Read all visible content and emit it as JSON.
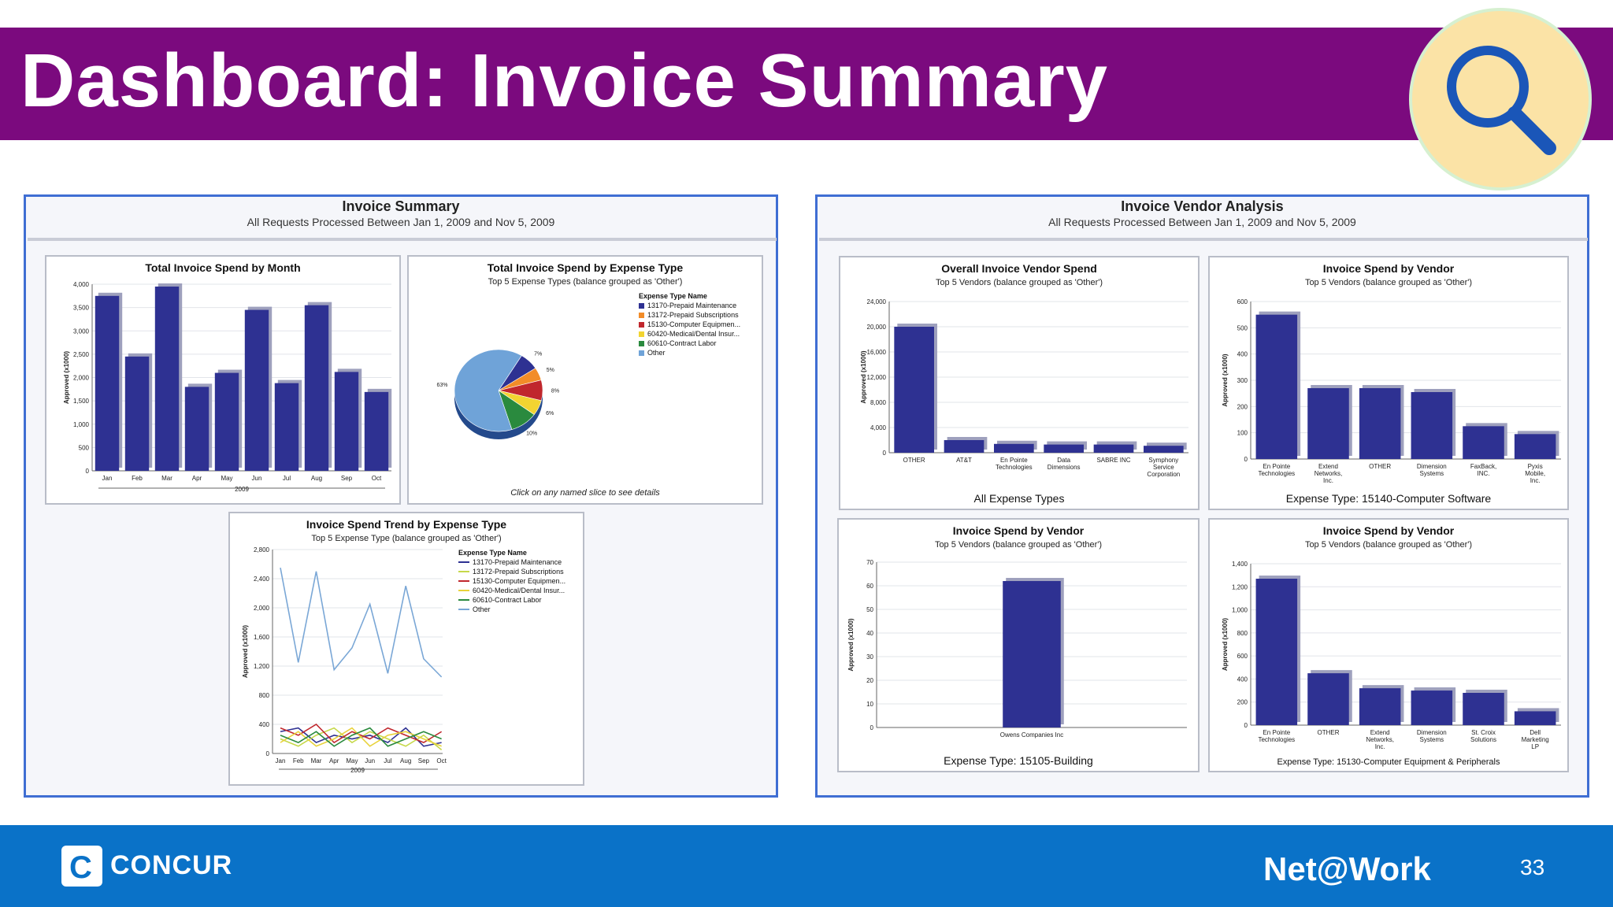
{
  "slide": {
    "title": "Dashboard: Invoice Summary",
    "page_number": "33"
  },
  "branding": {
    "left_logo": "CONCUR",
    "right_logo": "Net@Work"
  },
  "icons": {
    "search": "magnifier-icon",
    "concur": "concur-c-icon"
  },
  "colors": {
    "title_bar": "#7b0a7e",
    "footer": "#0a72c8",
    "bar": "#2e3192",
    "panel_border": "#3f6ed3"
  },
  "left_report": {
    "title": "Invoice Summary",
    "subtitle": "All Requests Processed  Between Jan 1, 2009 and Nov 5, 2009"
  },
  "right_report": {
    "title": "Invoice Vendor Analysis",
    "subtitle": "All Requests Processed  Between Jan 1, 2009 and Nov 5, 2009"
  },
  "charts": {
    "monthly": {
      "title": "Total Invoice Spend by Month",
      "ylabel": "Approved (x1000)",
      "year": "2009"
    },
    "expense_pie": {
      "title": "Total Invoice Spend by Expense Type",
      "subtitle": "Top 5 Expense Types (balance grouped as 'Other')",
      "legend_title": "Expense Type Name",
      "hint": "Click on any named slice to see details"
    },
    "trend": {
      "title": "Invoice Spend Trend by Expense Type",
      "subtitle": "Top 5 Expense Type (balance grouped as 'Other')",
      "legend_title": "Expense Type Name",
      "ylabel": "Approved (x1000)",
      "year": "2009"
    },
    "vendor_overall": {
      "title": "Overall Invoice Vendor Spend",
      "subtitle": "Top 5 Vendors (balance grouped as 'Other')",
      "ylabel": "Approved (x1000)",
      "footer": "All Expense Types"
    },
    "vendor_software": {
      "title": "Invoice Spend by Vendor",
      "subtitle": "Top 5 Vendors (balance grouped as 'Other')",
      "ylabel": "Approved (x1000)",
      "footer": "Expense Type: 15140-Computer Software"
    },
    "vendor_building": {
      "title": "Invoice Spend by Vendor",
      "subtitle": "Top 5 Vendors (balance grouped as 'Other')",
      "ylabel": "Approved (x1000)",
      "footer": "Expense Type: 15105-Building"
    },
    "vendor_equipment": {
      "title": "Invoice Spend by Vendor",
      "subtitle": "Top 5 Vendors (balance grouped as 'Other')",
      "ylabel": "Approved (x1000)",
      "footer": "Expense Type: 15130-Computer Equipment & Peripherals"
    }
  },
  "chart_data": [
    {
      "id": "monthly",
      "type": "bar",
      "categories": [
        "Jan",
        "Feb",
        "Mar",
        "Apr",
        "May",
        "Jun",
        "Jul",
        "Aug",
        "Sep",
        "Oct"
      ],
      "values": [
        3750,
        2450,
        3950,
        1800,
        2100,
        3450,
        1880,
        3550,
        2120,
        1690
      ],
      "ylim": [
        0,
        4000
      ],
      "yticks": [
        "0",
        "500",
        "1,000",
        "1,500",
        "2,000",
        "2,500",
        "3,000",
        "3,500",
        "4,000"
      ]
    },
    {
      "id": "expense_pie",
      "type": "pie",
      "series": [
        {
          "name": "13170-Prepaid Maintenance",
          "value": 7,
          "label": "7%",
          "color": "#2e3192"
        },
        {
          "name": "13172-Prepaid Subscriptions",
          "value": 5,
          "label": "5%",
          "color": "#f28c28"
        },
        {
          "name": "15130-Computer Equipmen...",
          "value": 8,
          "label": "8%",
          "color": "#c0272d"
        },
        {
          "name": "60420-Medical/Dental Insur...",
          "value": 6,
          "label": "6%",
          "color": "#f2d431"
        },
        {
          "name": "60610-Contract Labor",
          "value": 10,
          "label": "10%",
          "color": "#2a8a3e"
        },
        {
          "name": "Other",
          "value": 63,
          "label": "63%",
          "color": "#6fa3d8"
        }
      ]
    },
    {
      "id": "trend",
      "type": "line",
      "categories": [
        "Jan",
        "Feb",
        "Mar",
        "Apr",
        "May",
        "Jun",
        "Jul",
        "Aug",
        "Sep",
        "Oct"
      ],
      "ylim": [
        0,
        2800
      ],
      "yticks": [
        "0",
        "400",
        "800",
        "1,200",
        "1,600",
        "2,000",
        "2,400",
        "2,800"
      ],
      "series": [
        {
          "name": "13170-Prepaid Maintenance",
          "color": "#2e3192",
          "values": [
            300,
            350,
            150,
            250,
            200,
            250,
            150,
            350,
            100,
            150
          ]
        },
        {
          "name": "13172-Prepaid Subscriptions",
          "color": "#c6d84a",
          "values": [
            200,
            100,
            250,
            350,
            150,
            300,
            200,
            100,
            250,
            50
          ]
        },
        {
          "name": "15130-Computer Equipmen...",
          "color": "#c0272d",
          "values": [
            350,
            250,
            400,
            150,
            300,
            200,
            350,
            250,
            150,
            300
          ]
        },
        {
          "name": "60420-Medical/Dental Insur...",
          "color": "#e8d23a",
          "values": [
            150,
            300,
            100,
            200,
            350,
            100,
            250,
            300,
            200,
            100
          ]
        },
        {
          "name": "60610-Contract Labor",
          "color": "#2a8a3e",
          "values": [
            250,
            150,
            300,
            100,
            250,
            350,
            100,
            200,
            300,
            200
          ]
        },
        {
          "name": "Other",
          "color": "#7aa7d6",
          "values": [
            2550,
            1250,
            2500,
            1150,
            1450,
            2050,
            1100,
            2300,
            1300,
            1050
          ]
        }
      ]
    },
    {
      "id": "vendor_overall",
      "type": "bar",
      "categories": [
        "OTHER",
        "AT&T",
        "En Pointe Technologies",
        "Data Dimensions",
        "SABRE INC",
        "Symphony Service Corporation"
      ],
      "values": [
        20000,
        2000,
        1400,
        1300,
        1300,
        1100
      ],
      "ylim": [
        0,
        24000
      ],
      "yticks": [
        "0",
        "4,000",
        "8,000",
        "12,000",
        "16,000",
        "20,000",
        "24,000"
      ]
    },
    {
      "id": "vendor_software",
      "type": "bar",
      "categories": [
        "En Pointe Technologies",
        "Extend Networks, Inc.",
        "OTHER",
        "Dimension Systems",
        "FaxBack, INC.",
        "Pyxis Mobile, Inc."
      ],
      "values": [
        550,
        270,
        270,
        255,
        125,
        95
      ],
      "ylim": [
        0,
        600
      ],
      "yticks": [
        "0",
        "100",
        "200",
        "300",
        "400",
        "500",
        "600"
      ]
    },
    {
      "id": "vendor_building",
      "type": "bar",
      "categories": [
        "Owens Companies Inc"
      ],
      "values": [
        62
      ],
      "ylim": [
        0,
        70
      ],
      "yticks": [
        "0",
        "10",
        "20",
        "30",
        "40",
        "50",
        "60",
        "70"
      ]
    },
    {
      "id": "vendor_equipment",
      "type": "bar",
      "categories": [
        "En Pointe Technologies",
        "OTHER",
        "Extend Networks, Inc.",
        "Dimension Systems",
        "St. Croix Solutions",
        "Dell Marketing LP"
      ],
      "values": [
        1270,
        450,
        320,
        300,
        280,
        120
      ],
      "ylim": [
        0,
        1400
      ],
      "yticks": [
        "0",
        "200",
        "400",
        "600",
        "800",
        "1,000",
        "1,200",
        "1,400"
      ]
    }
  ]
}
